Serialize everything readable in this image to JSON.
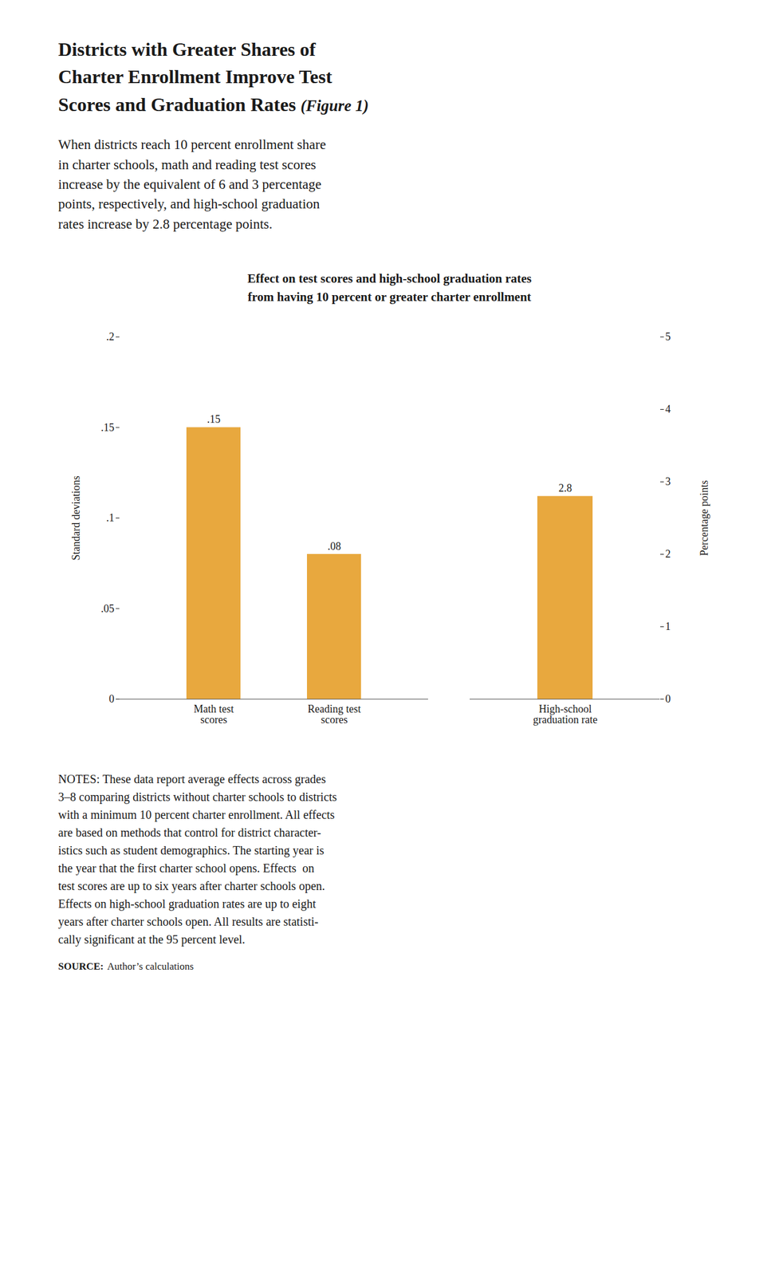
{
  "title": [
    "Districts with Greater Shares of",
    "Charter Enrollment Improve Test",
    "Scores and Graduation Rates"
  ],
  "figure_label": "(Figure 1)",
  "subtitle": [
    "When districts reach 10 percent enrollment share",
    "in charter schools, math and reading test scores",
    "increase by the equivalent of 6 and 3 percentage",
    "points, respectively, and high-school graduation",
    "rates increase by 2.8 percentage points."
  ],
  "chart_title": [
    "Effect on test scores and high-school graduation rates",
    "from having 10 percent or greater charter enrollment"
  ],
  "notes": [
    "NOTES: These data report average effects across grades",
    "3–8 comparing districts without charter schools to districts",
    "with a minimum 10 percent charter enrollment. All effects",
    "are based on methods that control for district character-",
    "istics such as student demographics. The starting year is",
    "the year that the first charter school opens. Effects  on",
    "test scores are up to six years after charter schools open.",
    "Effects on high-school graduation rates are up to eight",
    "years after charter schools open. All results are statisti-",
    "cally significant at the 95 percent level."
  ],
  "source": [
    "SOURCE:",
    "Author’s calculations"
  ],
  "chart_data": [
    {
      "type": "bar",
      "categories": [
        "Math test\nscores",
        "Reading test\nscores"
      ],
      "values": [
        0.15,
        0.08
      ],
      "value_labels": [
        ".15",
        ".08"
      ],
      "data_labels": true,
      "color": "#E8A83E",
      "ylabel": "Standard deviations",
      "ylim": [
        0,
        0.2
      ],
      "yticks": [
        0,
        {
          "value": 0.05,
          "label": ".05"
        },
        {
          "value": 0.1,
          "label": ".1"
        },
        {
          "value": 0.15,
          "label": ".15"
        },
        {
          "value": 0.2,
          "label": ".2"
        }
      ],
      "grid": false
    },
    {
      "type": "bar",
      "categories": [
        "High-school\ngraduation rate"
      ],
      "values": [
        2.8
      ],
      "data_labels": true,
      "color": "#E8A83E",
      "ylabel": "Percentage points",
      "ylim": [
        0,
        5
      ],
      "yticks": [
        0,
        1,
        2,
        3,
        4,
        5
      ],
      "grid": false
    }
  ]
}
